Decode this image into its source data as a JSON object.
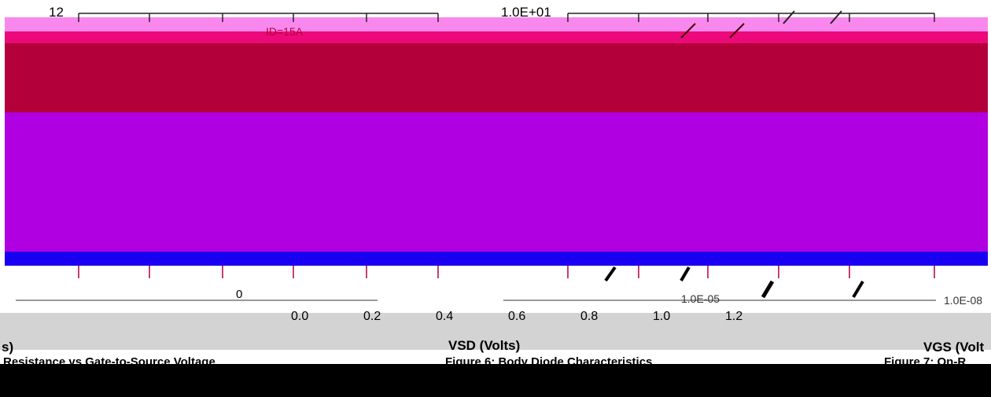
{
  "chart_data": [
    {
      "type": "line",
      "title": "",
      "caption": "Resistance vs Gate-to-Source Voltage",
      "xlabel": "s)",
      "ylabel": "",
      "y_tick_labels": [
        "12",
        "0"
      ],
      "annotations": [
        "ID=15A"
      ],
      "series": []
    },
    {
      "type": "line",
      "title": "",
      "caption": "Figure 6: Body Diode Characteristics",
      "xlabel": "VSD (Volts)",
      "x_tick_labels": [
        "0.0",
        "0.2",
        "0.4",
        "0.6",
        "0.8",
        "1.0",
        "1.2"
      ],
      "y_tick_labels": [
        "1.0E+01"
      ],
      "series": []
    },
    {
      "type": "line",
      "title": "",
      "caption": "Figure 7: On-R",
      "xlabel": "VGS (Volt",
      "y_tick_labels": [
        "1.0E-05",
        "1.0E-08"
      ],
      "series": []
    }
  ],
  "colors": {
    "band_pink": "#f988ee",
    "band_rose": "#ec0a7a",
    "band_crimson": "#b3003a",
    "band_violet": "#b000e1",
    "band_blue": "#1a00f0",
    "band_gray": "#d3d3d3",
    "band_black": "#000000"
  }
}
